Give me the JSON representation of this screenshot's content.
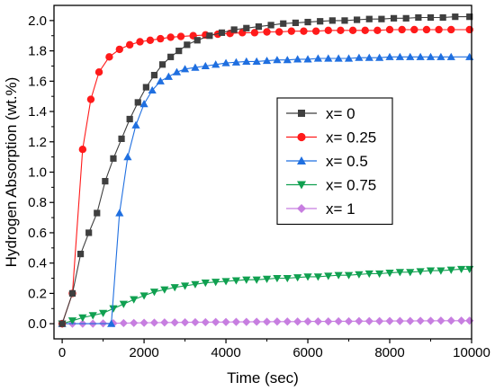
{
  "chart_data": {
    "type": "line",
    "xlabel": "Time (sec)",
    "ylabel": "Hydrogen Absorption (wt.%)",
    "xlim": [
      -200,
      10000
    ],
    "ylim": [
      -0.1,
      2.1
    ],
    "xticks": [
      0,
      2000,
      4000,
      6000,
      8000,
      10000
    ],
    "yticks": [
      0.0,
      0.2,
      0.4,
      0.6,
      0.8,
      1.0,
      1.2,
      1.4,
      1.6,
      1.8,
      2.0
    ],
    "xtick_labels": [
      "0",
      "2000",
      "4000",
      "6000",
      "8000",
      "10000"
    ],
    "ytick_labels": [
      "0.0",
      "0.2",
      "0.4",
      "0.6",
      "0.8",
      "1.0",
      "1.2",
      "1.4",
      "1.6",
      "1.8",
      "2.0"
    ],
    "grid": false,
    "legend_position": "center-right",
    "series": [
      {
        "name": "x= 0",
        "color": "#3f3f3f",
        "marker": "square",
        "x": [
          0,
          250,
          450,
          650,
          850,
          1050,
          1250,
          1450,
          1650,
          1850,
          2050,
          2250,
          2450,
          2650,
          2850,
          3050,
          3300,
          3600,
          3900,
          4200,
          4500,
          4800,
          5100,
          5400,
          5700,
          6000,
          6300,
          6600,
          6900,
          7200,
          7500,
          7800,
          8100,
          8400,
          8700,
          9000,
          9300,
          9600,
          9950
        ],
        "values": [
          0.0,
          0.2,
          0.46,
          0.6,
          0.73,
          0.94,
          1.09,
          1.22,
          1.35,
          1.46,
          1.56,
          1.64,
          1.71,
          1.76,
          1.8,
          1.84,
          1.87,
          1.9,
          1.92,
          1.94,
          1.95,
          1.96,
          1.97,
          1.98,
          1.985,
          1.99,
          1.995,
          2.0,
          2.0,
          2.005,
          2.01,
          2.01,
          2.015,
          2.015,
          2.02,
          2.02,
          2.02,
          2.025,
          2.025
        ]
      },
      {
        "name": "x= 0.25",
        "color": "#ff1a1a",
        "marker": "circle",
        "x": [
          0,
          250,
          500,
          700,
          900,
          1150,
          1400,
          1650,
          1900,
          2150,
          2400,
          2650,
          2900,
          3200,
          3500,
          3800,
          4100,
          4400,
          4700,
          5000,
          5300,
          5600,
          5900,
          6200,
          6500,
          6800,
          7100,
          7400,
          7700,
          8000,
          8300,
          8600,
          8900,
          9200,
          9500,
          9950
        ],
        "values": [
          0.0,
          0.2,
          1.15,
          1.48,
          1.66,
          1.76,
          1.81,
          1.84,
          1.86,
          1.87,
          1.88,
          1.89,
          1.895,
          1.9,
          1.905,
          1.91,
          1.915,
          1.92,
          1.92,
          1.925,
          1.925,
          1.93,
          1.93,
          1.93,
          1.935,
          1.935,
          1.935,
          1.935,
          1.935,
          1.94,
          1.94,
          1.94,
          1.94,
          1.94,
          1.94,
          1.94
        ]
      },
      {
        "name": "x= 0.5",
        "color": "#1f6fe0",
        "marker": "triangle-up",
        "x": [
          0,
          1200,
          1400,
          1600,
          1800,
          2000,
          2200,
          2400,
          2600,
          2800,
          3000,
          3250,
          3500,
          3750,
          4000,
          4250,
          4500,
          4750,
          5000,
          5250,
          5500,
          5750,
          6000,
          6250,
          6500,
          6750,
          7000,
          7250,
          7500,
          7750,
          8000,
          8250,
          8500,
          8750,
          9000,
          9250,
          9500,
          9950
        ],
        "values": [
          0.0,
          0.0,
          0.73,
          1.1,
          1.31,
          1.45,
          1.54,
          1.6,
          1.63,
          1.66,
          1.68,
          1.69,
          1.7,
          1.71,
          1.72,
          1.725,
          1.73,
          1.73,
          1.735,
          1.74,
          1.74,
          1.745,
          1.745,
          1.75,
          1.75,
          1.75,
          1.75,
          1.755,
          1.755,
          1.755,
          1.76,
          1.76,
          1.76,
          1.76,
          1.76,
          1.76,
          1.76,
          1.76
        ]
      },
      {
        "name": "x= 0.75",
        "color": "#10a050",
        "marker": "triangle-down",
        "x": [
          0,
          250,
          500,
          750,
          1000,
          1250,
          1500,
          1750,
          2000,
          2250,
          2500,
          2750,
          3000,
          3250,
          3500,
          3750,
          4000,
          4250,
          4500,
          4750,
          5000,
          5250,
          5500,
          5750,
          6000,
          6250,
          6500,
          6750,
          7000,
          7250,
          7500,
          7750,
          8000,
          8250,
          8500,
          8750,
          9000,
          9250,
          9500,
          9750,
          9950
        ],
        "values": [
          0.0,
          0.02,
          0.04,
          0.055,
          0.07,
          0.1,
          0.13,
          0.16,
          0.185,
          0.21,
          0.225,
          0.24,
          0.25,
          0.26,
          0.27,
          0.275,
          0.28,
          0.285,
          0.29,
          0.29,
          0.295,
          0.3,
          0.3,
          0.305,
          0.31,
          0.31,
          0.315,
          0.32,
          0.32,
          0.325,
          0.33,
          0.33,
          0.335,
          0.34,
          0.34,
          0.345,
          0.35,
          0.35,
          0.355,
          0.36,
          0.36
        ]
      },
      {
        "name": "x= 1",
        "color": "#c77ee0",
        "marker": "diamond",
        "x": [
          0,
          250,
          500,
          750,
          1000,
          1250,
          1500,
          1750,
          2000,
          2250,
          2500,
          2750,
          3000,
          3250,
          3500,
          3750,
          4000,
          4250,
          4500,
          4750,
          5000,
          5250,
          5500,
          5750,
          6000,
          6250,
          6500,
          6750,
          7000,
          7250,
          7500,
          7750,
          8000,
          8250,
          8500,
          8750,
          9000,
          9250,
          9500,
          9750,
          9950
        ],
        "values": [
          0.0,
          0.0,
          0.0,
          0.0,
          0.002,
          0.003,
          0.004,
          0.005,
          0.006,
          0.007,
          0.008,
          0.008,
          0.009,
          0.01,
          0.01,
          0.011,
          0.011,
          0.012,
          0.012,
          0.013,
          0.013,
          0.014,
          0.014,
          0.014,
          0.015,
          0.015,
          0.015,
          0.016,
          0.016,
          0.017,
          0.017,
          0.017,
          0.018,
          0.018,
          0.018,
          0.019,
          0.019,
          0.02,
          0.02,
          0.02,
          0.02
        ]
      }
    ]
  }
}
